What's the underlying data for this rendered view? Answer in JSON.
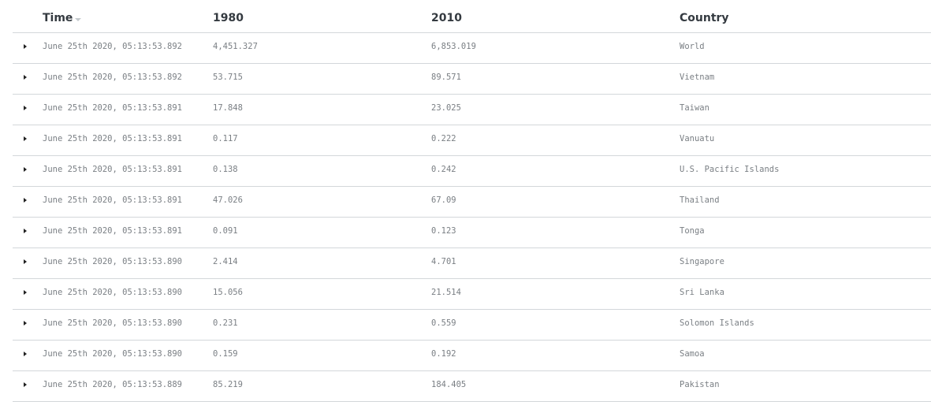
{
  "columns": {
    "time": "Time",
    "y1980": "1980",
    "y2010": "2010",
    "country": "Country"
  },
  "rows": [
    {
      "time": "June 25th 2020, 05:13:53.892",
      "y1980": "4,451.327",
      "y2010": "6,853.019",
      "country": "World"
    },
    {
      "time": "June 25th 2020, 05:13:53.892",
      "y1980": "53.715",
      "y2010": "89.571",
      "country": "Vietnam"
    },
    {
      "time": "June 25th 2020, 05:13:53.891",
      "y1980": "17.848",
      "y2010": "23.025",
      "country": "Taiwan"
    },
    {
      "time": "June 25th 2020, 05:13:53.891",
      "y1980": "0.117",
      "y2010": "0.222",
      "country": "Vanuatu"
    },
    {
      "time": "June 25th 2020, 05:13:53.891",
      "y1980": "0.138",
      "y2010": "0.242",
      "country": "U.S. Pacific Islands"
    },
    {
      "time": "June 25th 2020, 05:13:53.891",
      "y1980": "47.026",
      "y2010": "67.09",
      "country": "Thailand"
    },
    {
      "time": "June 25th 2020, 05:13:53.891",
      "y1980": "0.091",
      "y2010": "0.123",
      "country": "Tonga"
    },
    {
      "time": "June 25th 2020, 05:13:53.890",
      "y1980": "2.414",
      "y2010": "4.701",
      "country": "Singapore"
    },
    {
      "time": "June 25th 2020, 05:13:53.890",
      "y1980": "15.056",
      "y2010": "21.514",
      "country": "Sri Lanka"
    },
    {
      "time": "June 25th 2020, 05:13:53.890",
      "y1980": "0.231",
      "y2010": "0.559",
      "country": "Solomon Islands"
    },
    {
      "time": "June 25th 2020, 05:13:53.890",
      "y1980": "0.159",
      "y2010": "0.192",
      "country": "Samoa"
    },
    {
      "time": "June 25th 2020, 05:13:53.889",
      "y1980": "85.219",
      "y2010": "184.405",
      "country": "Pakistan"
    }
  ]
}
